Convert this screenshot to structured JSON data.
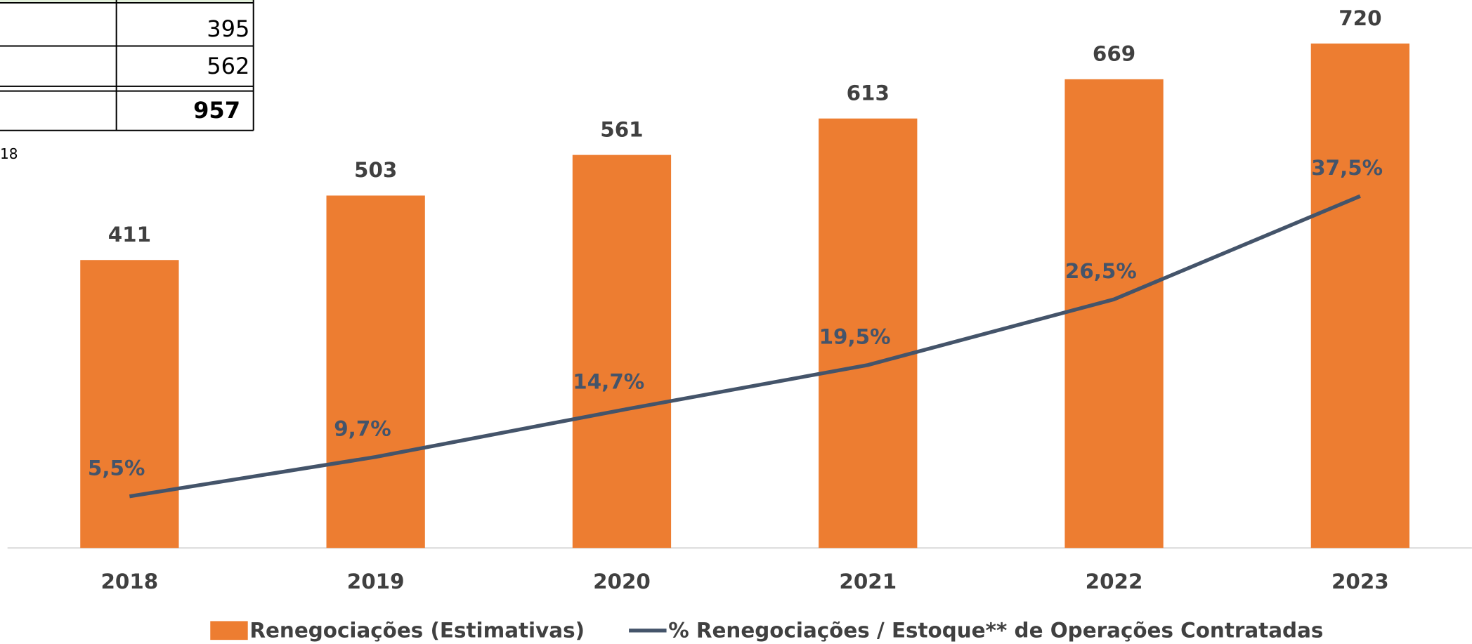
{
  "table": {
    "rows": [
      395,
      562,
      957
    ],
    "note": "18"
  },
  "chart_data": {
    "type": "bar",
    "categories": [
      "2018",
      "2019",
      "2020",
      "2021",
      "2022",
      "2023"
    ],
    "ylim": [
      0,
      750
    ],
    "y2lim": [
      0,
      56
    ],
    "series": [
      {
        "name": "Renegociações (Estimativas)",
        "type": "bar",
        "color": "#ed7d31",
        "values": [
          411,
          503,
          561,
          613,
          669,
          720
        ]
      },
      {
        "name": "% Renegociações / Estoque** de Operações Contratadas",
        "type": "line",
        "axis": "y2",
        "color": "#44546a",
        "values": [
          5.5,
          9.7,
          14.7,
          19.5,
          26.5,
          37.5
        ],
        "value_labels": [
          "5,5%",
          "9,7%",
          "14,7%",
          "19,5%",
          "26,5%",
          "37,5%"
        ]
      }
    ]
  }
}
